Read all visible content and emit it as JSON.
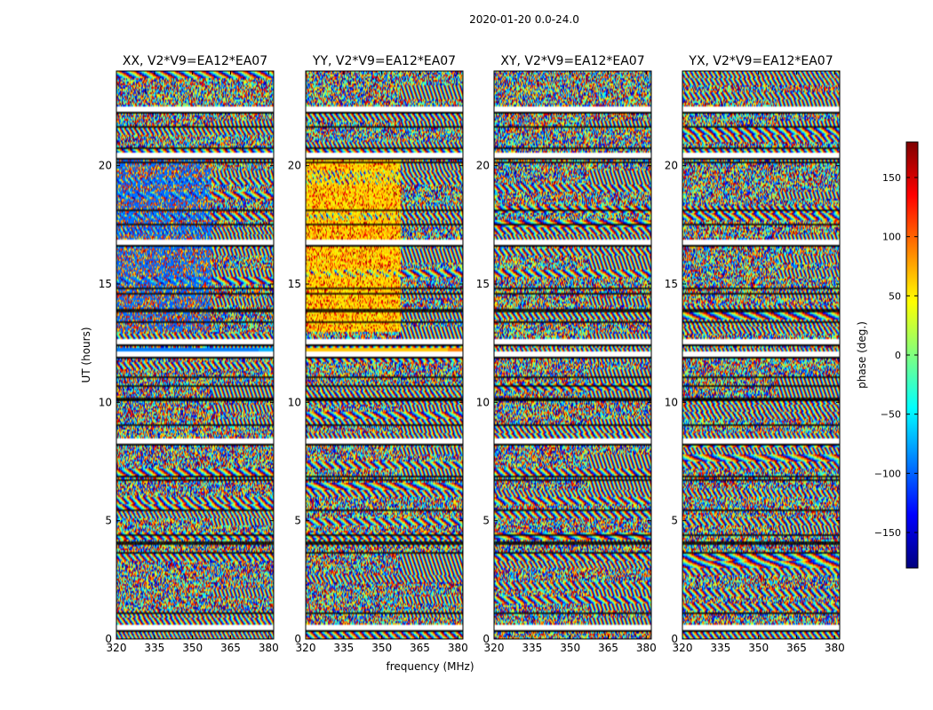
{
  "chart_data": {
    "type": "heatmap",
    "title": "2020-01-20 0.0-24.0",
    "xlabel": "frequency (MHz)",
    "ylabel": "UT (hours)",
    "xlim": [
      320,
      382
    ],
    "ylim": [
      0,
      24
    ],
    "xticks": [
      320,
      335,
      350,
      365,
      380
    ],
    "yticks": [
      0,
      5,
      10,
      15,
      20
    ],
    "panels": [
      {
        "title": "XX, V2*V9=EA12*EA07",
        "style": "xx"
      },
      {
        "title": "YY, V2*V9=EA12*EA07",
        "style": "yy"
      },
      {
        "title": "XY, V2*V9=EA12*EA07",
        "style": "xy"
      },
      {
        "title": "YX, V2*V9=EA12*EA07",
        "style": "yx"
      }
    ],
    "gap_rows_ut": [
      22.4,
      20.5,
      16.8,
      12.6,
      12.1,
      8.4,
      0.5
    ],
    "colorbar": {
      "label": "phase (deg.)",
      "range": [
        -180,
        180
      ],
      "ticks": [
        150,
        100,
        50,
        0,
        -50,
        -100,
        -150
      ],
      "tick_labels": [
        "150",
        "100",
        "50",
        "0",
        "−50",
        "−100",
        "−150"
      ],
      "colormap": [
        "#00007f",
        "#0000ff",
        "#007fff",
        "#00ffff",
        "#7fff7f",
        "#ffff00",
        "#ff7f00",
        "#ff0000",
        "#7f0000"
      ]
    }
  }
}
